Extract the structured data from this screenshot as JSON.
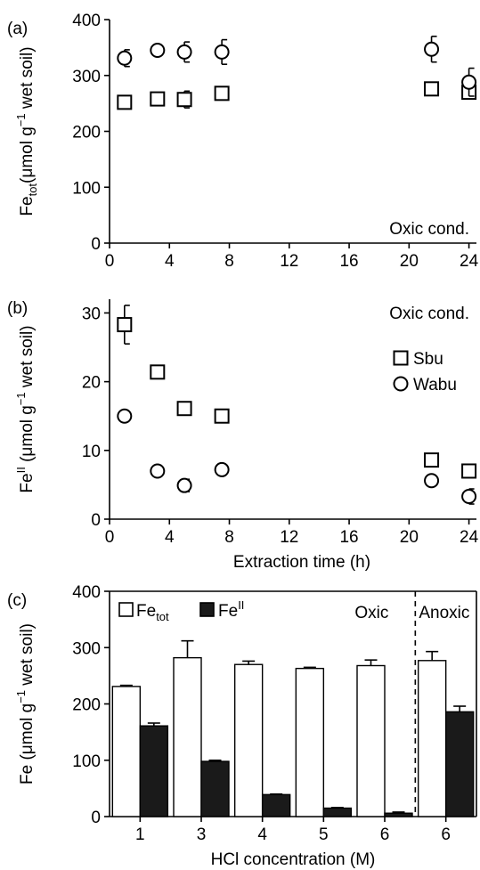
{
  "chart_data": [
    {
      "panel_label": "(a)",
      "type": "scatter",
      "ylabel": {
        "main": "Fe",
        "sub": "tot",
        "unit": "(μmol g",
        "sup": "−1",
        "rest": " wet soil)"
      },
      "xlabel": "",
      "annotation": "Oxic cond.",
      "xlim": [
        0,
        24.5
      ],
      "ylim": [
        0,
        400
      ],
      "xticks": [
        0,
        4,
        8,
        12,
        16,
        20,
        24
      ],
      "yticks": [
        0,
        100,
        200,
        300,
        400
      ],
      "series": [
        {
          "marker": "square",
          "points": [
            {
              "x": 1,
              "y": 252,
              "err": 10
            },
            {
              "x": 3.2,
              "y": 258,
              "err": 10
            },
            {
              "x": 5,
              "y": 257,
              "err": 15
            },
            {
              "x": 7.5,
              "y": 268,
              "err": 10
            },
            {
              "x": 21.5,
              "y": 276,
              "err": 8
            },
            {
              "x": 24,
              "y": 270,
              "err": 8
            }
          ]
        },
        {
          "marker": "circle",
          "points": [
            {
              "x": 1,
              "y": 331,
              "err": 15
            },
            {
              "x": 3.2,
              "y": 345,
              "err": 7
            },
            {
              "x": 5,
              "y": 342,
              "err": 18
            },
            {
              "x": 7.5,
              "y": 342,
              "err": 22
            },
            {
              "x": 21.5,
              "y": 347,
              "err": 23
            },
            {
              "x": 24,
              "y": 288,
              "err": 25
            }
          ]
        }
      ]
    },
    {
      "panel_label": "(b)",
      "type": "scatter",
      "ylabel": {
        "main": "Fe",
        "sup1": "II",
        "unit": " (μmol g",
        "sup": "−1",
        "rest": " wet soil)"
      },
      "xlabel": "Extraction time (h)",
      "annotation": "Oxic cond.",
      "xlim": [
        0,
        24.5
      ],
      "ylim": [
        0,
        32
      ],
      "xticks": [
        0,
        4,
        8,
        12,
        16,
        20,
        24
      ],
      "yticks": [
        0,
        10,
        20,
        30
      ],
      "legend": [
        {
          "marker": "square",
          "label": "Sbu"
        },
        {
          "marker": "circle",
          "label": "Wabu"
        }
      ],
      "series": [
        {
          "name": "Sbu",
          "marker": "square",
          "points": [
            {
              "x": 1,
              "y": 28.3,
              "err": 2.8
            },
            {
              "x": 3.2,
              "y": 21.4,
              "err": 0.5
            },
            {
              "x": 5,
              "y": 16.1,
              "err": 0.5
            },
            {
              "x": 7.5,
              "y": 15.0,
              "err": 0.5
            },
            {
              "x": 21.5,
              "y": 8.6,
              "err": 0.4
            },
            {
              "x": 24,
              "y": 7.0,
              "err": 0.4
            }
          ]
        },
        {
          "name": "Wabu",
          "marker": "circle",
          "points": [
            {
              "x": 1,
              "y": 15.0,
              "err": 0.3
            },
            {
              "x": 3.2,
              "y": 7.0,
              "err": 0.3
            },
            {
              "x": 5,
              "y": 4.9,
              "err": 0.9
            },
            {
              "x": 7.5,
              "y": 7.2,
              "err": 0.3
            },
            {
              "x": 21.5,
              "y": 5.6,
              "err": 0.3
            },
            {
              "x": 24,
              "y": 3.3,
              "err": 1.1
            }
          ]
        }
      ]
    },
    {
      "panel_label": "(c)",
      "type": "bar",
      "ylabel": {
        "main": "Fe",
        "unit": " (μmol g",
        "sup": "−1",
        "rest": " wet soil)"
      },
      "xlabel": "HCl concentration (M)",
      "ylim": [
        0,
        400
      ],
      "yticks": [
        0,
        100,
        200,
        300,
        400
      ],
      "categories": [
        "1",
        "3",
        "4",
        "5",
        "6",
        "6"
      ],
      "region_labels": [
        "Oxic",
        "Anoxic"
      ],
      "legend": [
        {
          "label_main": "Fe",
          "label_sub": "tot",
          "fill": "#ffffff"
        },
        {
          "label_main": "Fe",
          "label_sup": "II",
          "fill": "#1a1a1a"
        }
      ],
      "series": [
        {
          "name": "Fe_tot",
          "fill": "#ffffff",
          "values": [
            231,
            282,
            270,
            263,
            268,
            277
          ],
          "errors": [
            2,
            30,
            6,
            2,
            10,
            16
          ]
        },
        {
          "name": "Fe_II",
          "fill": "#1a1a1a",
          "values": [
            161,
            98,
            39,
            15,
            6,
            186
          ],
          "errors": [
            5,
            2,
            1,
            1,
            2,
            10
          ]
        }
      ]
    }
  ]
}
